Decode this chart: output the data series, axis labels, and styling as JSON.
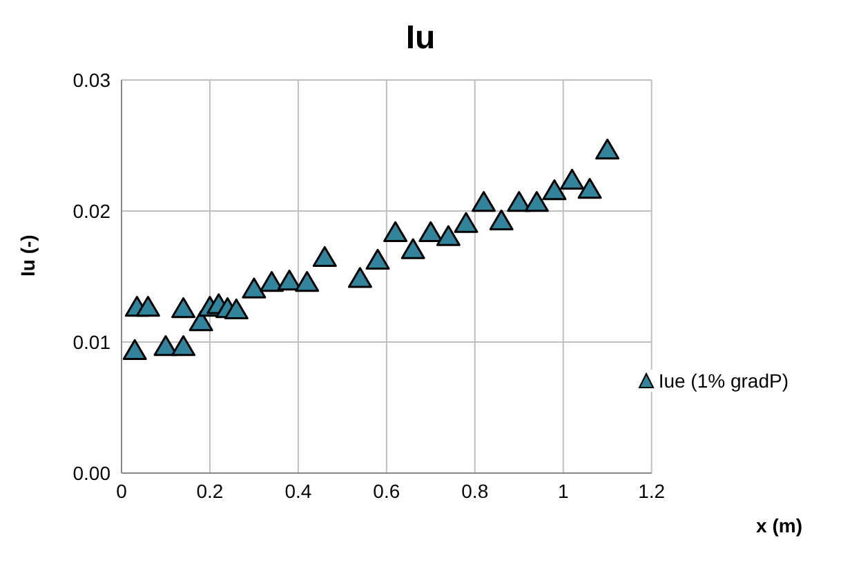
{
  "chart_data": {
    "type": "scatter",
    "title": "Iu",
    "xlabel": "x (m)",
    "ylabel": "Iu (-)",
    "x": [
      0.03,
      0.035,
      0.06,
      0.1,
      0.14,
      0.14,
      0.18,
      0.2,
      0.22,
      0.24,
      0.26,
      0.3,
      0.34,
      0.38,
      0.42,
      0.46,
      0.54,
      0.58,
      0.62,
      0.66,
      0.7,
      0.74,
      0.78,
      0.82,
      0.86,
      0.9,
      0.94,
      0.98,
      1.02,
      1.06,
      1.1
    ],
    "series": [
      {
        "name": "Iue (1% gradP)",
        "color": "#31849b",
        "values": [
          0.0093,
          0.0126,
          0.0126,
          0.0096,
          0.0096,
          0.0125,
          0.0115,
          0.0126,
          0.0128,
          0.0125,
          0.0124,
          0.014,
          0.0145,
          0.0146,
          0.0145,
          0.0164,
          0.0148,
          0.0162,
          0.0183,
          0.017,
          0.0183,
          0.018,
          0.019,
          0.0206,
          0.0192,
          0.0206,
          0.0206,
          0.0215,
          0.0223,
          0.0216,
          0.0246
        ]
      }
    ],
    "xlim": [
      0,
      1.2
    ],
    "xticks": [
      0,
      0.2,
      0.4,
      0.6,
      0.8,
      1,
      1.2
    ],
    "ylim": [
      0,
      0.03
    ],
    "yticks": [
      {
        "value": 0,
        "label": "0.00"
      },
      {
        "value": 0.01,
        "label": "0.01"
      },
      {
        "value": 0.02,
        "label": "0.02"
      },
      {
        "value": 0.03,
        "label": "0.03"
      }
    ],
    "grid": true,
    "legend": "right",
    "marker": "triangle"
  }
}
